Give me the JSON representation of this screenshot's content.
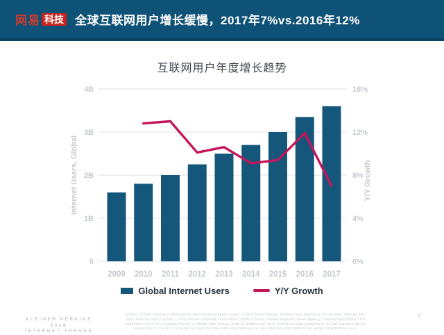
{
  "header": {
    "logo_primary": "网易",
    "logo_secondary": "科技",
    "title": "全球互联网用户增长缓慢，2017年7%vs.2016年12%"
  },
  "chart_data": {
    "type": "bar",
    "title": "互联网用户年度增长趋势",
    "categories": [
      "2009",
      "2010",
      "2011",
      "2012",
      "2013",
      "2014",
      "2015",
      "2016",
      "2017"
    ],
    "series": [
      {
        "name": "Global Internet Users",
        "type": "bar",
        "axis": "left",
        "unit": "billions",
        "values": [
          1.6,
          1.8,
          2.0,
          2.25,
          2.5,
          2.7,
          3.0,
          3.35,
          3.6
        ]
      },
      {
        "name": "Y/Y Growth",
        "type": "line",
        "axis": "right",
        "unit": "%",
        "values": [
          null,
          12.8,
          13.0,
          10.1,
          10.6,
          9.1,
          9.4,
          11.9,
          7.0
        ]
      }
    ],
    "left_axis": {
      "title": "Internet Users, Global",
      "ticks": [
        "0",
        "1B",
        "2B",
        "3B",
        "4B"
      ],
      "range": [
        0,
        4
      ]
    },
    "right_axis": {
      "title": "Y/Y Growth",
      "ticks": [
        "0%",
        "4%",
        "8%",
        "12%",
        "16%"
      ],
      "range": [
        0,
        16
      ]
    },
    "grid": true,
    "legend_position": "bottom"
  },
  "colors": {
    "header_bg": "#0f5278",
    "bar": "#14577b",
    "line": "#c3155a",
    "logo_red": "#cb221d",
    "grid": "#e4e6e9",
    "tick_text": "#c6cacf"
  },
  "footer": {
    "brand_lines": [
      "KLEINER PERKINS",
      "2018",
      "INTERNET TRENDS"
    ],
    "source_lines": [
      "Source: United Nations / International Telecommunications Union, USA Census Bureau. Internet user data is as of mid-year. Internet user",
      "data: Pew Research (USA), China Internet Network Information Center (China), Islamic Republic News Agency / InternetWorldStats / KP",
      "estimates (Iran), KP estimates based on IAMAI data (India), & APJII (Indonesia). Note: Historical data (particularly in Sub-Saharan Africa)",
      "revised by ITU in 2017 to better account for dual-SIM subscriptions (i.e. two Internet subscriptions per single smartphone user)."
    ],
    "page_number": "7"
  }
}
